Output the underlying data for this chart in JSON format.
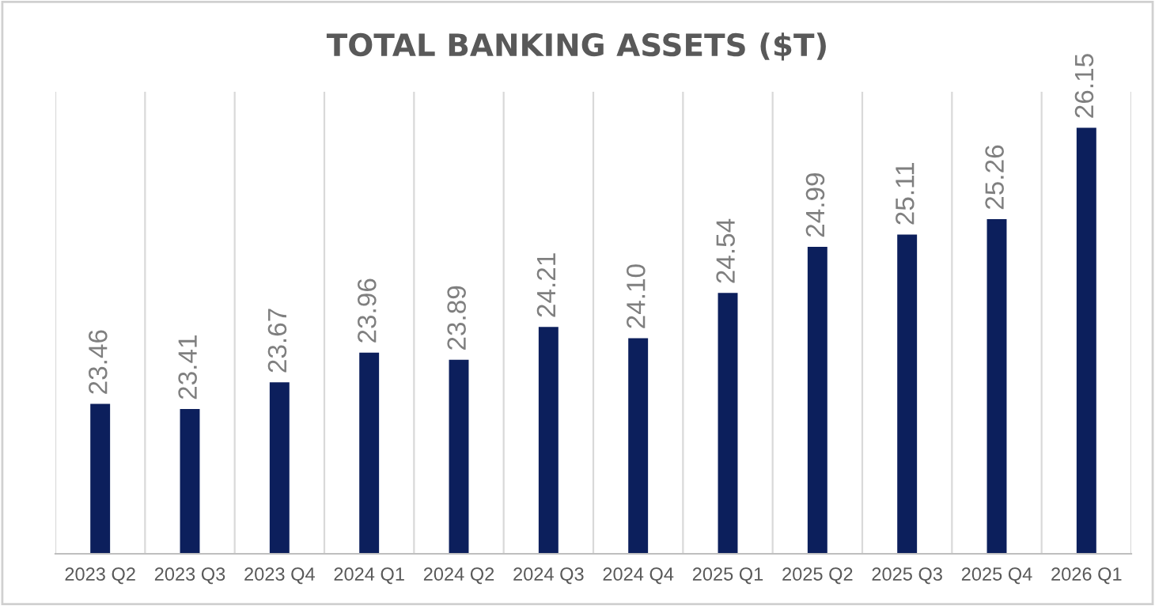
{
  "chart_data": {
    "type": "bar",
    "title": "TOTAL BANKING ASSETS ($T)",
    "categories": [
      "2023 Q2",
      "2023 Q3",
      "2023 Q4",
      "2024 Q1",
      "2024 Q2",
      "2024 Q3",
      "2024 Q4",
      "2025 Q1",
      "2025 Q2",
      "2025 Q3",
      "2025 Q4",
      "2026 Q1"
    ],
    "values": [
      23.46,
      23.41,
      23.67,
      23.96,
      23.89,
      24.21,
      24.1,
      24.54,
      24.99,
      25.11,
      25.26,
      26.15
    ],
    "value_labels": [
      "23.46",
      "23.41",
      "23.67",
      "23.96",
      "23.89",
      "24.21",
      "24.10",
      "24.54",
      "24.99",
      "25.11",
      "25.26",
      "26.15"
    ],
    "color": "#0c1f5c",
    "ylim": [
      22,
      26.5
    ],
    "grid": "x",
    "tick_labels": "x"
  }
}
